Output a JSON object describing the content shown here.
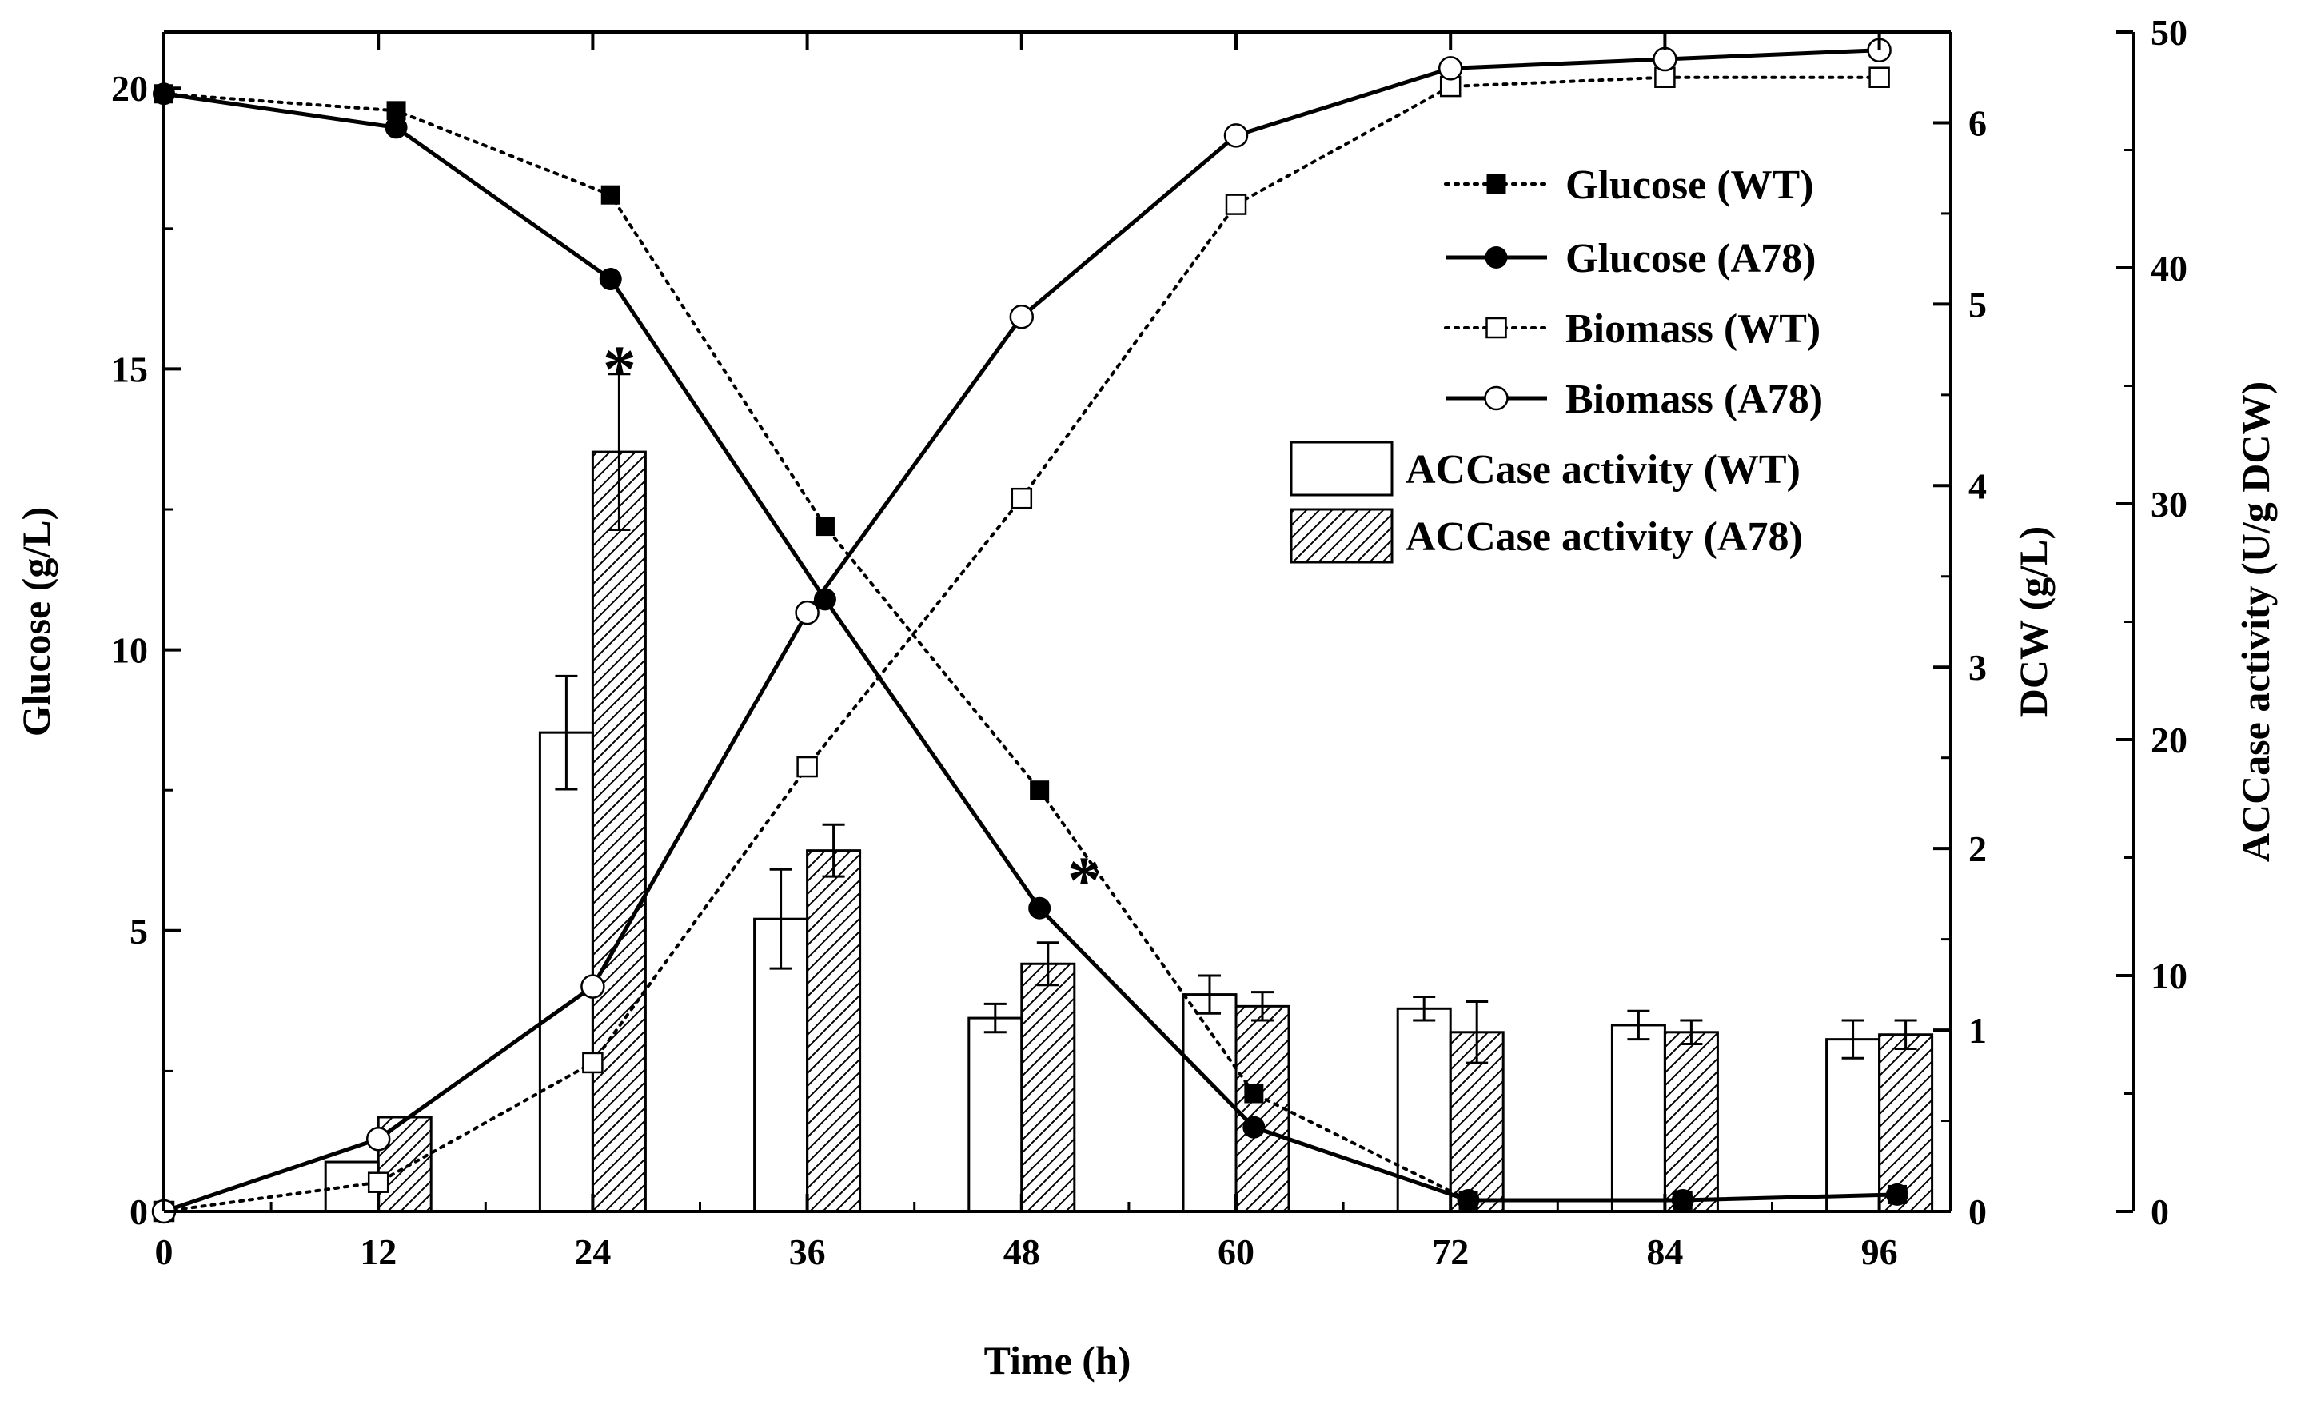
{
  "chart_data": {
    "type": "bar+line",
    "title": "",
    "xlabel": "Time (h)",
    "ylabel_left": "Glucose (g/L)",
    "ylabel_right1": "DCW (g/L)",
    "ylabel_right2": "ACCase activity (U/g DCW)",
    "xlim": [
      0,
      100
    ],
    "ylim_glucose": [
      0,
      21
    ],
    "ylim_dcw": [
      0,
      6.5
    ],
    "ylim_accase": [
      0,
      50
    ],
    "x_ticks": [
      "0",
      "12",
      "24",
      "36",
      "48",
      "60",
      "72",
      "84",
      "96"
    ],
    "glucose_ticks": [
      "0",
      "5",
      "10",
      "15",
      "20"
    ],
    "dcw_ticks": [
      "0",
      "1",
      "2",
      "3",
      "4",
      "5",
      "6"
    ],
    "accase_ticks": [
      "0",
      "10",
      "20",
      "30",
      "40",
      "50"
    ],
    "line_series": [
      {
        "name": "Glucose (WT)",
        "axis": "glucose",
        "style": "dotted",
        "marker": "filled-square",
        "x": [
          0,
          13,
          25,
          37,
          49,
          61,
          73,
          85,
          97
        ],
        "y": [
          19.9,
          19.6,
          18.1,
          12.2,
          7.5,
          2.1,
          0.2,
          0.2,
          0.3
        ]
      },
      {
        "name": "Glucose (A78)",
        "axis": "glucose",
        "style": "solid",
        "marker": "filled-circle",
        "x": [
          0,
          13,
          25,
          37,
          49,
          61,
          73,
          85,
          97
        ],
        "y": [
          19.9,
          19.3,
          16.6,
          10.9,
          5.4,
          1.5,
          0.2,
          0.2,
          0.3
        ]
      },
      {
        "name": "Biomass (WT)",
        "axis": "dcw",
        "style": "dotted",
        "marker": "open-square",
        "x": [
          0,
          12,
          24,
          36,
          48,
          60,
          72,
          84,
          96
        ],
        "y": [
          0,
          0.16,
          0.82,
          2.45,
          3.93,
          5.55,
          6.2,
          6.25,
          6.25
        ]
      },
      {
        "name": "Biomass (A78)",
        "axis": "dcw",
        "style": "solid",
        "marker": "open-circle",
        "x": [
          0,
          12,
          24,
          36,
          48,
          60,
          72,
          84,
          96
        ],
        "y": [
          0,
          0.4,
          1.24,
          3.3,
          4.93,
          5.93,
          6.3,
          6.35,
          6.4
        ]
      }
    ],
    "bar_series": [
      {
        "name": "ACCase activity (WT)",
        "axis": "accase",
        "fill": "open",
        "x": [
          12,
          24,
          36,
          48,
          60,
          72,
          84,
          96
        ],
        "values": [
          2.1,
          20.3,
          12.4,
          8.2,
          9.2,
          8.6,
          7.9,
          7.3
        ],
        "errors": [
          0,
          2.4,
          2.1,
          0.6,
          0.8,
          0.5,
          0.6,
          0.8
        ]
      },
      {
        "name": "ACCase activity (A78)",
        "axis": "accase",
        "fill": "hatched",
        "x": [
          12,
          24,
          36,
          48,
          60,
          72,
          84,
          96
        ],
        "values": [
          4.0,
          32.2,
          15.3,
          10.5,
          8.7,
          7.6,
          7.6,
          7.5
        ],
        "errors": [
          0,
          3.3,
          1.1,
          0.9,
          0.6,
          1.3,
          0.5,
          0.6
        ]
      }
    ],
    "annotations": [
      {
        "text": "*",
        "x": 25.5,
        "axis": "glucose",
        "y": 14.6
      },
      {
        "text": "*",
        "x": 51.5,
        "axis": "glucose",
        "y": 5.5
      }
    ],
    "legend": {
      "placement": "top-right",
      "entries": [
        "Glucose (WT)",
        "Glucose (A78)",
        "Biomass (WT)",
        "Biomass (A78)",
        "ACCase activity (WT)",
        "ACCase activity (A78)"
      ]
    }
  }
}
